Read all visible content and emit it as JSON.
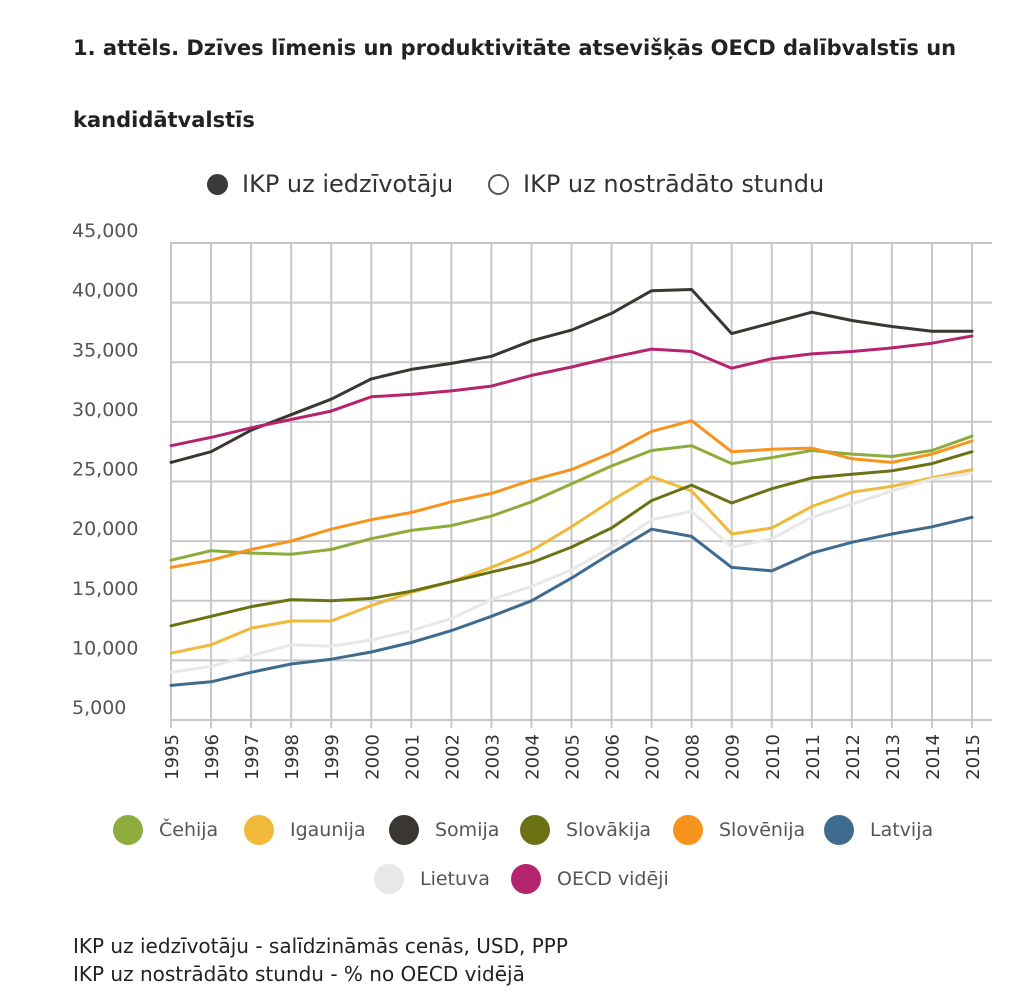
{
  "page": {
    "title": "1. attēls. Dzīves līmenis un produktivitāte atsevišķās OECD dalībvalstīs un kandidātvalstīs",
    "toggles": [
      {
        "label": "IKP uz iedzīvotāju",
        "state": "selected"
      },
      {
        "label": "IKP uz nostrādāto stundu",
        "state": "unselected"
      }
    ],
    "notes": [
      "IKP uz iedzīvotāju - salīdzināmās cenās, USD, PPP",
      "IKP uz nostrādāto stundu - % no OECD vidējā"
    ]
  },
  "chart_data": {
    "type": "line",
    "title": "",
    "xlabel": "",
    "ylabel": "",
    "ylim": [
      5000,
      45000
    ],
    "yticks": [
      5000,
      10000,
      15000,
      20000,
      25000,
      30000,
      35000,
      40000,
      45000
    ],
    "ytick_labels": [
      "5,000",
      "10,000",
      "15,000",
      "20,000",
      "25,000",
      "30,000",
      "35,000",
      "40,000",
      "45,000"
    ],
    "grid": true,
    "legend_position": "bottom",
    "x": [
      "1995",
      "1996",
      "1997",
      "1998",
      "1999",
      "2000",
      "2001",
      "2002",
      "2003",
      "2004",
      "2005",
      "2006",
      "2007",
      "2008",
      "2009",
      "2010",
      "2011",
      "2012",
      "2013",
      "2014",
      "2015"
    ],
    "series": [
      {
        "name": "Čehija",
        "color": "#8dac3c",
        "values": [
          18400,
          19200,
          19000,
          18900,
          19300,
          20200,
          20900,
          21300,
          22100,
          23300,
          24800,
          26300,
          27600,
          28000,
          26500,
          27000,
          27600,
          27300,
          27100,
          27600,
          28800
        ]
      },
      {
        "name": "Igaunija",
        "color": "#f0b93a",
        "values": [
          10600,
          11300,
          12700,
          13300,
          13300,
          14600,
          15700,
          16600,
          17800,
          19200,
          21200,
          23400,
          25400,
          24200,
          20600,
          21100,
          22900,
          24100,
          24600,
          25300,
          26000
        ]
      },
      {
        "name": "Somija",
        "color": "#3a3631",
        "values": [
          26600,
          27500,
          29300,
          30600,
          31900,
          33600,
          34400,
          34900,
          35500,
          36800,
          37700,
          39100,
          41000,
          41100,
          37400,
          38300,
          39200,
          38500,
          38000,
          37600,
          37600
        ]
      },
      {
        "name": "Slovākija",
        "color": "#6b7214",
        "values": [
          12900,
          13700,
          14500,
          15100,
          15000,
          15200,
          15800,
          16600,
          17400,
          18200,
          19500,
          21100,
          23400,
          24700,
          23200,
          24400,
          25300,
          25600,
          25900,
          26500,
          27500
        ]
      },
      {
        "name": "Slovēnija",
        "color": "#f7941d",
        "values": [
          17800,
          18400,
          19300,
          20000,
          21000,
          21800,
          22400,
          23300,
          24000,
          25100,
          26000,
          27400,
          29200,
          30100,
          27500,
          27700,
          27800,
          26900,
          26600,
          27300,
          28400
        ]
      },
      {
        "name": "Latvija",
        "color": "#3f6b8e",
        "values": [
          7900,
          8200,
          9000,
          9700,
          10100,
          10700,
          11500,
          12500,
          13700,
          15000,
          16900,
          19000,
          21000,
          20400,
          17800,
          17500,
          19000,
          19900,
          20600,
          21200,
          22000
        ]
      },
      {
        "name": "Lietuva",
        "color": "#e8e8e8",
        "values": [
          9000,
          9500,
          10400,
          11300,
          11200,
          11700,
          12500,
          13500,
          15100,
          16200,
          17600,
          19500,
          21800,
          22500,
          19500,
          20200,
          22000,
          23100,
          24200,
          25200,
          25700
        ]
      },
      {
        "name": "OECD vidēji",
        "color": "#b5246e",
        "values": [
          28000,
          28700,
          29500,
          30200,
          30900,
          32100,
          32300,
          32600,
          33000,
          33900,
          34600,
          35400,
          36100,
          35900,
          34500,
          35300,
          35700,
          35900,
          36200,
          36600,
          37200
        ]
      }
    ]
  }
}
